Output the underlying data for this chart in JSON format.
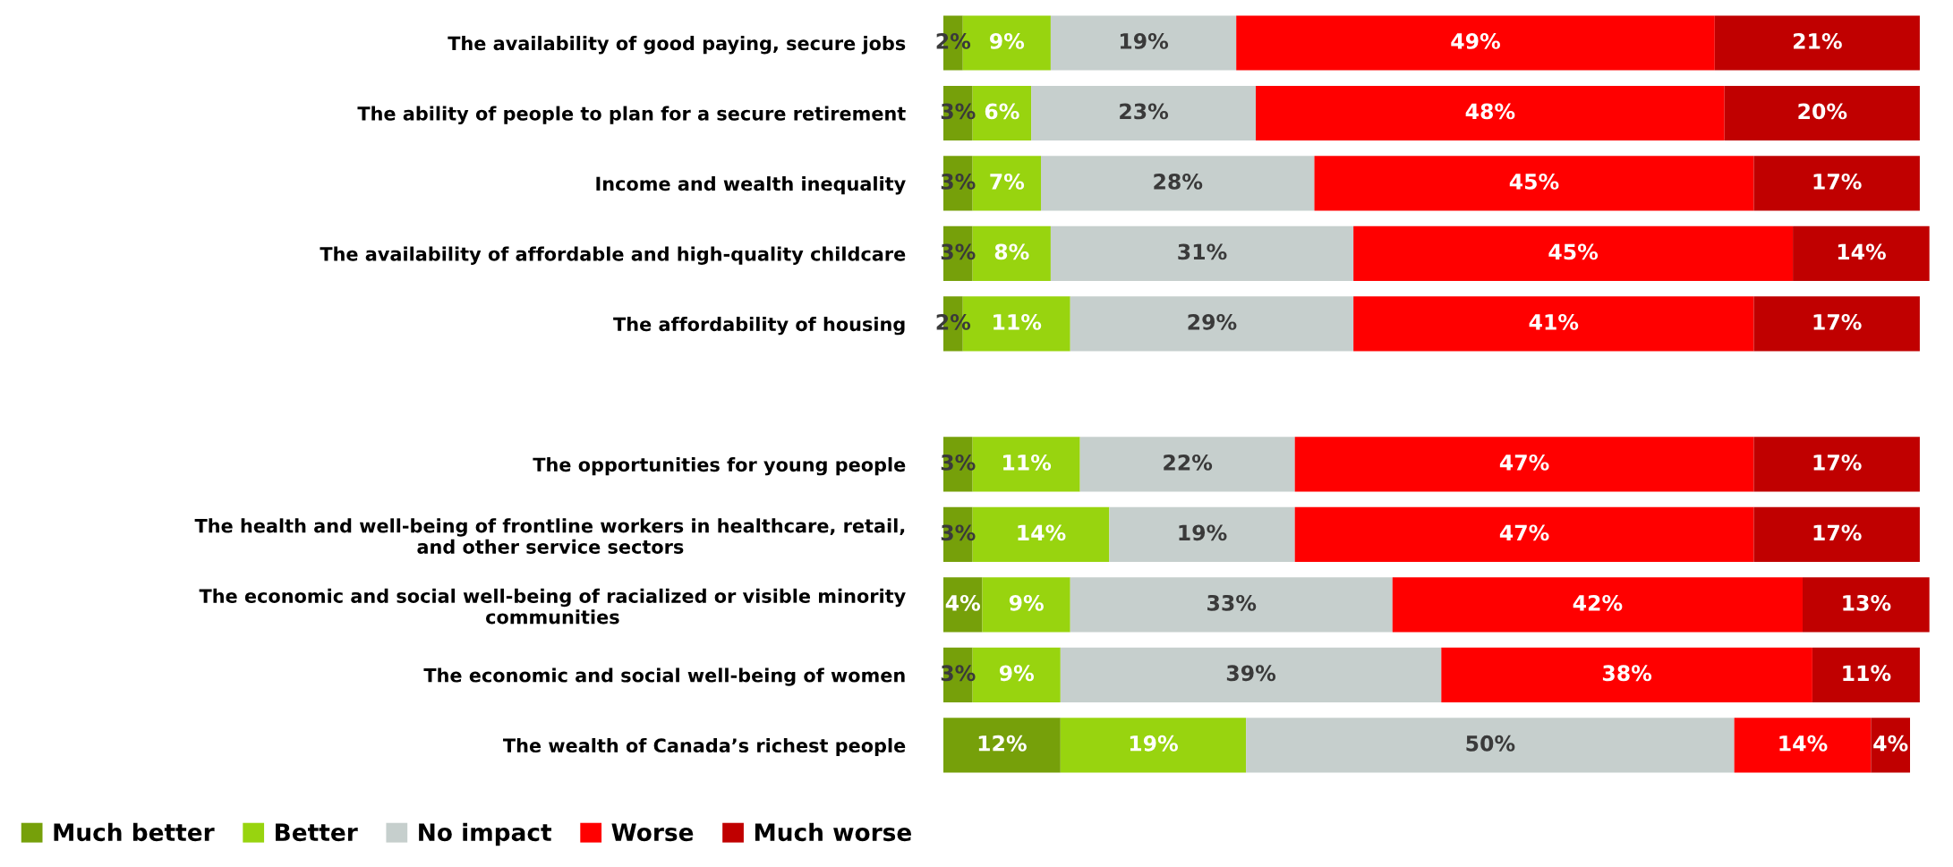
{
  "chart_data": {
    "type": "bar",
    "orientation": "horizontal",
    "stacked": true,
    "legend": "bottom left",
    "grid": false,
    "categories": [
      "The availability of good paying, secure jobs",
      "The ability of people to plan for a secure retirement",
      "Income and wealth inequality",
      "The availability of affordable and high-quality childcare",
      "The affordability of housing",
      null,
      "The opportunities for young people",
      "The health and well-being of frontline workers in healthcare, retail,\nand other service sectors",
      "The economic and social well-being of racialized or visible minority\ncommunities",
      "The economic and social well-being of women",
      "The wealth of Canada’s richest people"
    ],
    "series": [
      {
        "name": "Much better",
        "color": "#76a00a",
        "values": [
          2,
          3,
          3,
          3,
          2,
          null,
          3,
          3,
          4,
          3,
          12
        ],
        "value_labels": [
          "2%",
          "3%",
          "3%",
          "3%",
          "2%",
          null,
          "3%",
          "3%",
          "4%",
          "3%",
          "12%"
        ]
      },
      {
        "name": "Better",
        "color": "#98d40f",
        "values": [
          9,
          6,
          7,
          8,
          11,
          null,
          11,
          14,
          9,
          9,
          19
        ],
        "value_labels": [
          "9%",
          "6%",
          "7%",
          "8%",
          "11%",
          null,
          "11%",
          "14%",
          "9%",
          "9%",
          "19%"
        ]
      },
      {
        "name": "No impact",
        "color": "#c6cfcd",
        "values": [
          19,
          23,
          28,
          31,
          29,
          null,
          22,
          19,
          33,
          39,
          50
        ],
        "value_labels": [
          "19%",
          "23%",
          "28%",
          "31%",
          "29%",
          null,
          "22%",
          "19%",
          "33%",
          "39%",
          "50%"
        ]
      },
      {
        "name": "Worse",
        "color": "#ff0000",
        "values": [
          49,
          48,
          45,
          45,
          41,
          null,
          47,
          47,
          42,
          38,
          14
        ],
        "value_labels": [
          "49%",
          "48%",
          "45%",
          "45%",
          "41%",
          null,
          "47%",
          "47%",
          "42%",
          "38%",
          "14%"
        ]
      },
      {
        "name": "Much worse",
        "color": "#c00000",
        "values": [
          21,
          20,
          17,
          14,
          17,
          null,
          17,
          17,
          13,
          11,
          4
        ],
        "value_labels": [
          "21%",
          "20%",
          "17%",
          "14%",
          "17%",
          null,
          "17%",
          "17%",
          "13%",
          "11%",
          "4%"
        ]
      }
    ]
  }
}
